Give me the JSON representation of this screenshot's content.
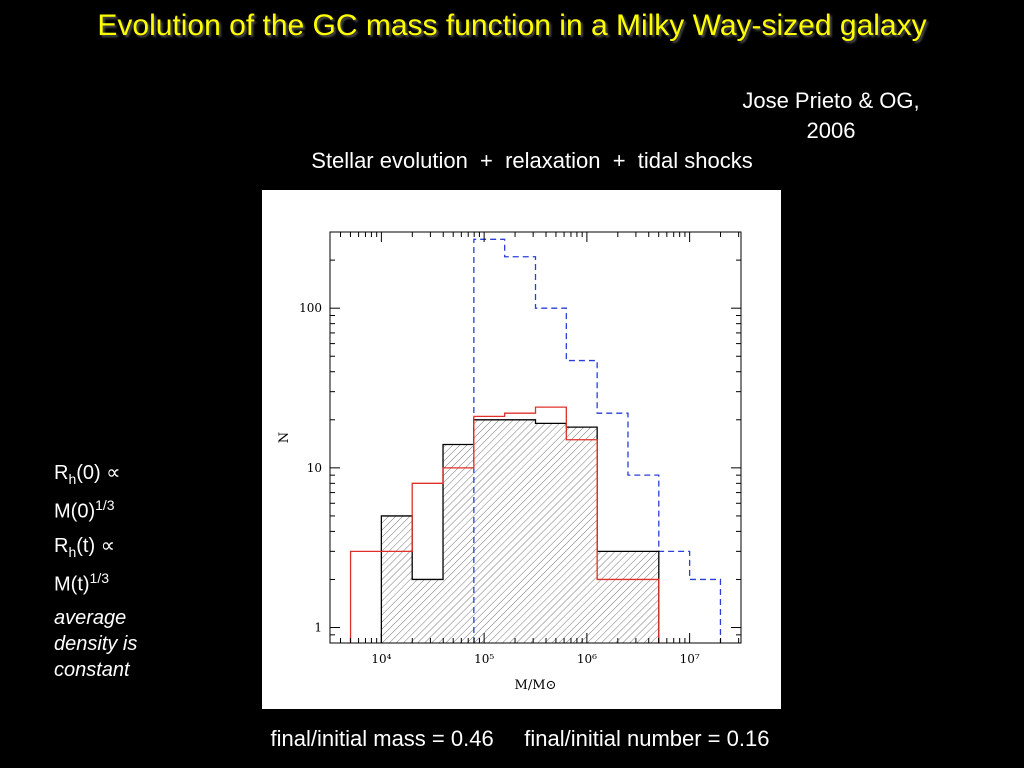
{
  "slide": {
    "title": "Evolution of the GC mass function in a Milky Way-sized galaxy",
    "author_line1": "Jose Prieto & OG,",
    "author_line2": "2006",
    "subtitle": "Stellar evolution  +  relaxation  +  tidal shocks",
    "side": {
      "eq1": {
        "r": "R",
        "sub": "h",
        "arg": "(0)",
        "prop": "∝",
        "m": "M(0)",
        "sup": "1/3"
      },
      "eq2": {
        "r": "R",
        "sub": "h",
        "arg": "(t)",
        "prop": "∝",
        "m": "M(t)",
        "sup": "1/3"
      },
      "note": "average density is constant"
    },
    "footer": "final/initial mass = 0.46     final/initial number = 0.16"
  },
  "chart_data": {
    "type": "histogram-step",
    "xlabel": "M/M⊙",
    "ylabel": "N",
    "xscale": "log",
    "yscale": "log",
    "xlim_log10": [
      3.5,
      7.5
    ],
    "ylim": [
      0.8,
      300
    ],
    "x_ticks": [
      {
        "label": "10⁴",
        "log10": 4
      },
      {
        "label": "10⁵",
        "log10": 5
      },
      {
        "label": "10⁶",
        "log10": 6
      },
      {
        "label": "10⁷",
        "log10": 7
      }
    ],
    "y_ticks": [
      {
        "label": "1",
        "value": 1
      },
      {
        "label": "10",
        "value": 10
      },
      {
        "label": "100",
        "value": 100
      }
    ],
    "bin_edges_log10": [
      3.7,
      4.0,
      4.3,
      4.6,
      4.9,
      5.2,
      5.5,
      5.8,
      6.1,
      6.4,
      6.7,
      7.0,
      7.3
    ],
    "series": [
      {
        "id": "initial",
        "style": "dashed",
        "color": "#2a3fd6",
        "values": [
          0,
          0,
          0,
          0,
          270,
          210,
          100,
          47,
          22,
          9,
          3,
          2
        ]
      },
      {
        "id": "final",
        "style": "hatched",
        "color": "#000000",
        "values": [
          0,
          5,
          2,
          14,
          20,
          20,
          19,
          18,
          3,
          3,
          0,
          0
        ]
      },
      {
        "id": "final-alt",
        "style": "solid",
        "color": "#e0302a",
        "values": [
          3,
          3,
          8,
          10,
          21,
          22,
          24,
          15,
          2,
          2,
          0,
          0
        ]
      }
    ],
    "colors": {
      "initial": "#2a3fd6",
      "final": "#000000",
      "final-alt": "#e0302a"
    }
  }
}
